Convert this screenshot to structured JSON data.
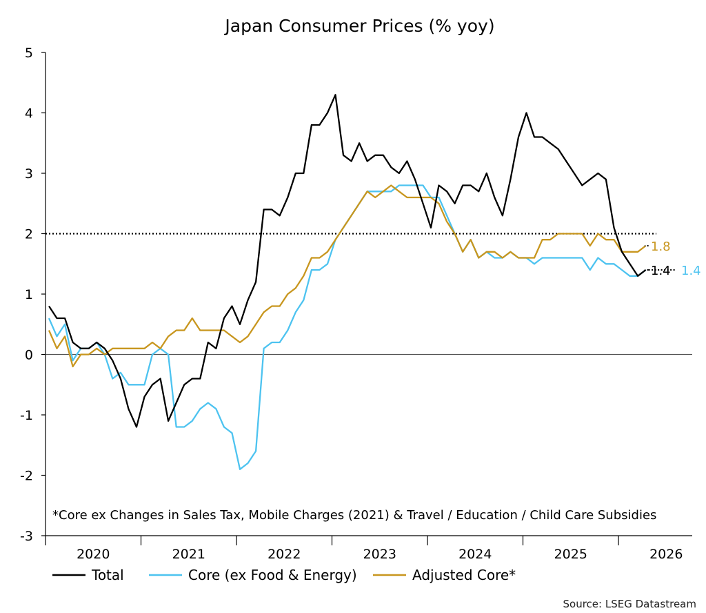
{
  "chart_data": {
    "type": "line",
    "title": "Japan Consumer Prices (% yoy)",
    "xlabel": "",
    "ylabel": "",
    "ylim": [
      -3,
      5
    ],
    "y_ticks": [
      "5",
      "4",
      "3",
      "2",
      "1",
      "0",
      "-1",
      "-2",
      "-3"
    ],
    "x_ticks": [
      "2020",
      "2021",
      "2022",
      "2023",
      "2024",
      "2025",
      "2026"
    ],
    "x_start": "2020-01",
    "reference_line": {
      "y": 2,
      "style": "dotted"
    },
    "zero_line": true,
    "grid": false,
    "legend_position": "bottom",
    "series": [
      {
        "name": "Total",
        "color": "#000000",
        "end_label": "1.4",
        "values": [
          0.8,
          0.6,
          0.6,
          0.2,
          0.1,
          0.1,
          0.2,
          0.1,
          -0.1,
          -0.4,
          -0.9,
          -1.2,
          -0.7,
          -0.5,
          -0.4,
          -1.1,
          -0.8,
          -0.5,
          -0.4,
          -0.4,
          0.2,
          0.1,
          0.6,
          0.8,
          0.5,
          0.9,
          1.2,
          2.4,
          2.4,
          2.3,
          2.6,
          3.0,
          3.0,
          3.8,
          3.8,
          4.0,
          4.3,
          3.3,
          3.2,
          3.5,
          3.2,
          3.3,
          3.3,
          3.1,
          3.0,
          3.2,
          2.9,
          2.5,
          2.1,
          2.8,
          2.7,
          2.5,
          2.8,
          2.8,
          2.7,
          3.0,
          2.6,
          2.3,
          2.9,
          3.6,
          4.0,
          3.6,
          3.6,
          3.5,
          3.4,
          3.2,
          3.0,
          2.8,
          2.9,
          3.0,
          2.9,
          2.1,
          1.7,
          1.5,
          1.3,
          1.4
        ]
      },
      {
        "name": "Core (ex Food & Energy)",
        "color": "#4dc3f0",
        "end_label": "1.4",
        "values": [
          0.6,
          0.3,
          0.5,
          -0.1,
          0.1,
          0.1,
          0.2,
          0.0,
          -0.4,
          -0.3,
          -0.5,
          -0.5,
          -0.5,
          0.0,
          0.1,
          0.0,
          -1.2,
          -1.2,
          -1.1,
          -0.9,
          -0.8,
          -0.9,
          -1.2,
          -1.3,
          -1.9,
          -1.8,
          -1.6,
          0.1,
          0.2,
          0.2,
          0.4,
          0.7,
          0.9,
          1.4,
          1.4,
          1.5,
          1.9,
          2.1,
          2.3,
          2.5,
          2.7,
          2.7,
          2.7,
          2.7,
          2.8,
          2.8,
          2.8,
          2.8,
          2.6,
          2.6,
          2.3,
          2.0,
          1.7,
          1.9,
          1.6,
          1.7,
          1.6,
          1.6,
          1.7,
          1.6,
          1.6,
          1.5,
          1.6,
          1.6,
          1.6,
          1.6,
          1.6,
          1.6,
          1.4,
          1.6,
          1.5,
          1.5,
          1.4,
          1.3,
          1.3,
          1.4
        ]
      },
      {
        "name": "Adjusted Core*",
        "color": "#c8961e",
        "end_label": "1.8",
        "values": [
          0.4,
          0.1,
          0.3,
          -0.2,
          0.0,
          0.0,
          0.1,
          0.0,
          0.1,
          0.1,
          0.1,
          0.1,
          0.1,
          0.2,
          0.1,
          0.3,
          0.4,
          0.4,
          0.6,
          0.4,
          0.4,
          0.4,
          0.4,
          0.3,
          0.2,
          0.3,
          0.5,
          0.7,
          0.8,
          0.8,
          1.0,
          1.1,
          1.3,
          1.6,
          1.6,
          1.7,
          1.9,
          2.1,
          2.3,
          2.5,
          2.7,
          2.6,
          2.7,
          2.8,
          2.7,
          2.6,
          2.6,
          2.6,
          2.6,
          2.5,
          2.2,
          2.0,
          1.7,
          1.9,
          1.6,
          1.7,
          1.7,
          1.6,
          1.7,
          1.6,
          1.6,
          1.6,
          1.9,
          1.9,
          2.0,
          2.0,
          2.0,
          2.0,
          1.8,
          2.0,
          1.9,
          1.9,
          1.7,
          1.7,
          1.7,
          1.8
        ]
      }
    ],
    "annotation": "*Core ex Changes in Sales Tax, Mobile Charges (2021)  & Travel / Education / Child Care Subsidies",
    "source": "Source: LSEG Datastream"
  }
}
